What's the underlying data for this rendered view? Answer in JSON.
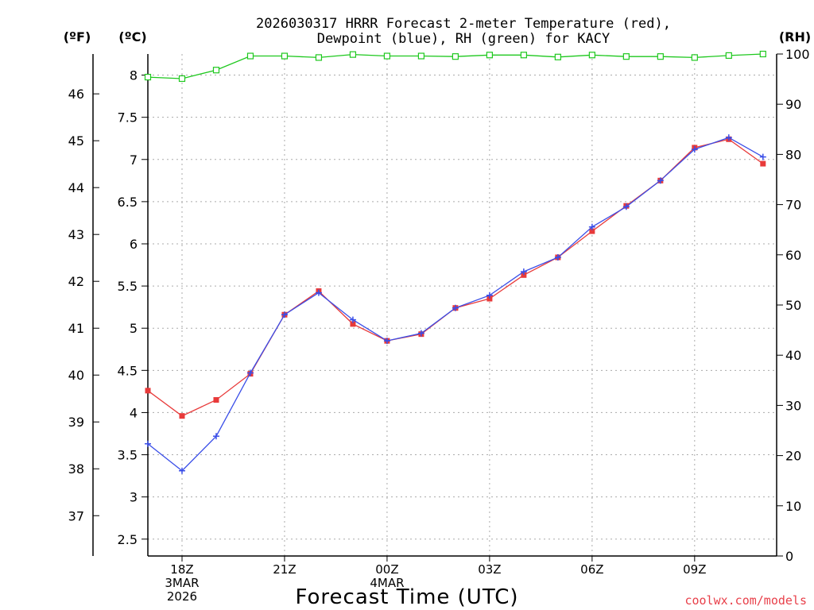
{
  "chart_data": {
    "type": "line",
    "title": "2026030317 HRRR Forecast 2-meter Temperature (red),",
    "subtitle": "Dewpoint (blue), RH (green) for KACY",
    "xlabel": "Forecast Time (UTC)",
    "unit_labels": {
      "fahrenheit": "(ºF)",
      "celsius": "(ºC)",
      "rh": "(RH)"
    },
    "credit": "coolwx.com/models",
    "x_hours": [
      17,
      18,
      19,
      20,
      21,
      22,
      23,
      24,
      25,
      26,
      27,
      28,
      29,
      30,
      31,
      32,
      33,
      34,
      35
    ],
    "xlim": [
      17,
      35.4
    ],
    "ylim_celsius": [
      2.3,
      8.25
    ],
    "ylim_rh": [
      0,
      100
    ],
    "x_ticks": [
      {
        "hour": 18,
        "lines": [
          "18Z",
          "3MAR",
          "2026"
        ]
      },
      {
        "hour": 21,
        "lines": [
          "21Z"
        ]
      },
      {
        "hour": 24,
        "lines": [
          "00Z",
          "4MAR"
        ]
      },
      {
        "hour": 27,
        "lines": [
          "03Z"
        ]
      },
      {
        "hour": 30,
        "lines": [
          "06Z"
        ]
      },
      {
        "hour": 33,
        "lines": [
          "09Z"
        ]
      }
    ],
    "celsius_ticks": [
      "2.5",
      "3",
      "3.5",
      "4",
      "4.5",
      "5",
      "5.5",
      "6",
      "6.5",
      "7",
      "7.5",
      "8"
    ],
    "fahrenheit_ticks": [
      "37",
      "38",
      "39",
      "40",
      "41",
      "42",
      "43",
      "44",
      "45",
      "46"
    ],
    "rh_ticks": [
      "0",
      "10",
      "20",
      "30",
      "40",
      "50",
      "60",
      "70",
      "80",
      "90",
      "100"
    ],
    "series": [
      {
        "name": "Temperature",
        "axis": "celsius",
        "color": "#e83a3a",
        "marker": "square",
        "values": [
          4.26,
          3.96,
          4.15,
          4.46,
          5.16,
          5.44,
          5.05,
          4.85,
          4.93,
          5.24,
          5.35,
          5.63,
          5.84,
          6.15,
          6.45,
          6.75,
          7.14,
          7.24,
          6.95
        ]
      },
      {
        "name": "Dewpoint",
        "axis": "celsius",
        "color": "#3a4ee8",
        "marker": "plus",
        "values": [
          3.63,
          3.31,
          3.72,
          4.47,
          5.16,
          5.42,
          5.1,
          4.85,
          4.94,
          5.24,
          5.39,
          5.67,
          5.84,
          6.2,
          6.44,
          6.75,
          7.12,
          7.26,
          7.03
        ]
      },
      {
        "name": "RH",
        "axis": "rh",
        "color": "#1ec81e",
        "marker": "open-square",
        "values": [
          95.4,
          95.1,
          96.8,
          99.6,
          99.6,
          99.3,
          99.9,
          99.6,
          99.6,
          99.5,
          99.8,
          99.8,
          99.4,
          99.8,
          99.5,
          99.5,
          99.3,
          99.7,
          100
        ]
      }
    ]
  }
}
